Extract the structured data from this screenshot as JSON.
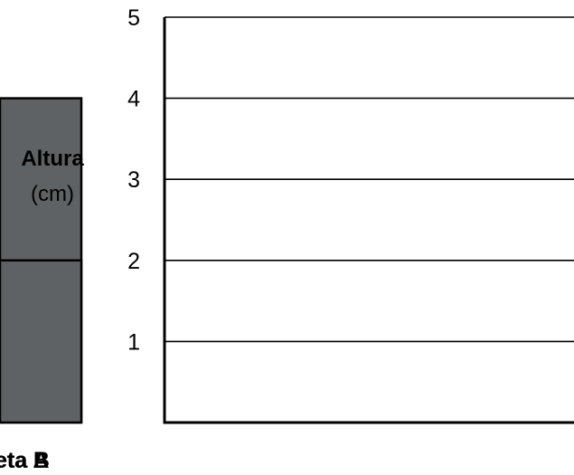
{
  "chart_data": {
    "type": "bar",
    "title": "",
    "ylabel": "Altura",
    "ylabel_unit": "(cm)",
    "xlabel": "",
    "categories": [
      "Maceta A",
      "Maceta B"
    ],
    "values": [
      4,
      2
    ],
    "ylim": [
      0,
      5
    ],
    "yticks": [
      1,
      2,
      3,
      4,
      5
    ],
    "grid": true,
    "bar_color": "#5f6264",
    "bar_edge_color": "#000000",
    "grid_color": "#000000",
    "axis_color": "#000000"
  }
}
